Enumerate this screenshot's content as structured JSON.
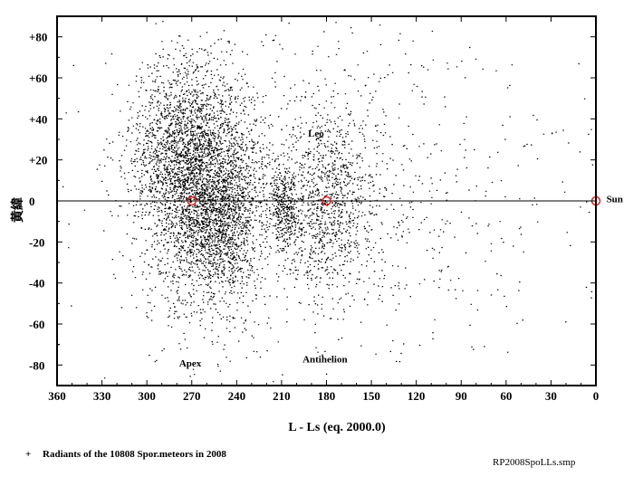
{
  "chart_data": {
    "type": "scatter",
    "xlabel": "L - Ls (eq. 2000.0)",
    "ylabel": "黄緯",
    "xlim": [
      360,
      0
    ],
    "ylim": [
      -90,
      90
    ],
    "x_ticks": [
      "360",
      "330",
      "300",
      "270",
      "240",
      "210",
      "180",
      "150",
      "120",
      "90",
      "60",
      "30",
      "0"
    ],
    "y_ticks": [
      "+80",
      "+60",
      "+40",
      "+20",
      "0",
      "-20",
      "-40",
      "-60",
      "-80"
    ],
    "x_tick_values": [
      360,
      330,
      300,
      270,
      240,
      210,
      180,
      150,
      120,
      90,
      60,
      30,
      0
    ],
    "y_tick_values": [
      80,
      60,
      40,
      20,
      0,
      -20,
      -40,
      -60,
      -80
    ],
    "zero_line": 0,
    "point_count": 10808,
    "clusters": [
      {
        "x": 262,
        "y": 5,
        "sx": 22,
        "sy": 28,
        "weight": 0.48
      },
      {
        "x": 278,
        "y": 30,
        "sx": 18,
        "sy": 18,
        "weight": 0.12
      },
      {
        "x": 250,
        "y": -10,
        "sx": 12,
        "sy": 16,
        "weight": 0.08
      },
      {
        "x": 208,
        "y": -2,
        "sx": 5,
        "sy": 10,
        "weight": 0.05
      },
      {
        "x": 180,
        "y": -2,
        "sx": 15,
        "sy": 22,
        "weight": 0.12
      },
      {
        "x": 160,
        "y": 10,
        "sx": 30,
        "sy": 35,
        "weight": 0.05
      },
      {
        "x": 180,
        "y": 0,
        "sx": 90,
        "sy": 45,
        "weight": 0.1
      }
    ],
    "markers": [
      {
        "name": "Apex",
        "x": 270,
        "y": 0,
        "label": "Apex",
        "label_x": 271,
        "label_y": -79
      },
      {
        "name": "Antihelion",
        "x": 180,
        "y": 0,
        "label": "Antihelion",
        "label_x": 181,
        "label_y": -77
      },
      {
        "name": "Sun",
        "x": 0,
        "y": 0,
        "label": "Sun",
        "label_x": -7,
        "label_y": 1
      }
    ],
    "annotations": [
      {
        "text": "Leo",
        "x": 187,
        "y": 33
      }
    ],
    "colors": {
      "points": "#000000",
      "markers": "#dd2222",
      "axes": "#000000"
    }
  },
  "legend": {
    "symbol": "+",
    "text": "Radiants of the 10808 Spor.meteors in 2008"
  },
  "filename": "RP2008SpoLLs.smp"
}
